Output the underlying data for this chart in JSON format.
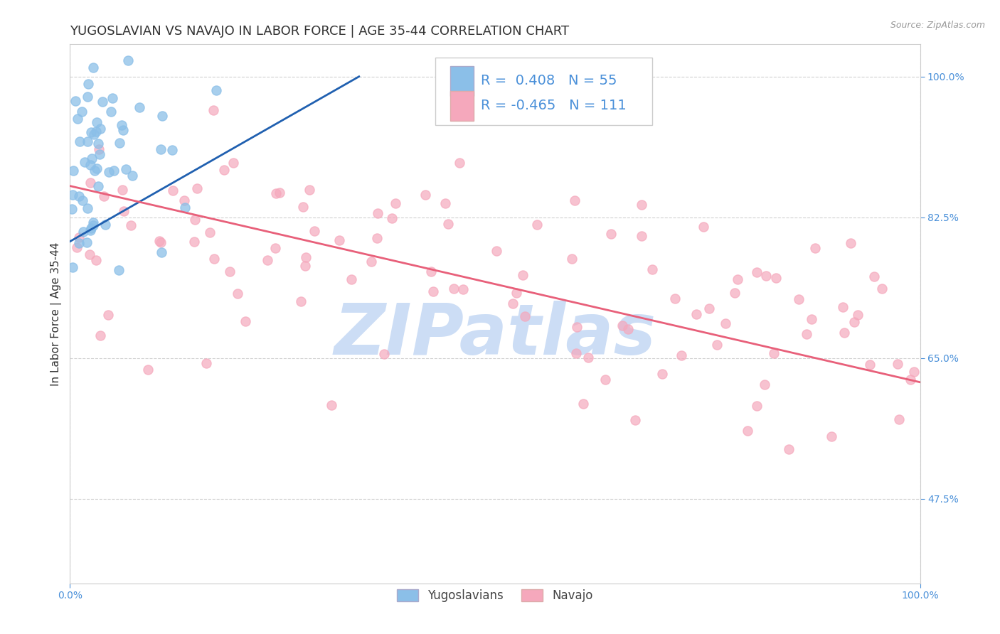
{
  "title": "YUGOSLAVIAN VS NAVAJO IN LABOR FORCE | AGE 35-44 CORRELATION CHART",
  "source_text": "Source: ZipAtlas.com",
  "ylabel": "In Labor Force | Age 35-44",
  "xlim": [
    0.0,
    1.0
  ],
  "ylim": [
    0.37,
    1.04
  ],
  "xtick_labels": [
    "0.0%",
    "100.0%"
  ],
  "xtick_positions": [
    0.0,
    1.0
  ],
  "ytick_labels": [
    "47.5%",
    "65.0%",
    "82.5%",
    "100.0%"
  ],
  "ytick_positions": [
    0.475,
    0.65,
    0.825,
    1.0
  ],
  "yug_color": "#8bbfe8",
  "navajo_color": "#f5a8bc",
  "yug_trend_color": "#2060b0",
  "navajo_trend_color": "#e8607a",
  "background_color": "#ffffff",
  "grid_color": "#cccccc",
  "watermark": "ZIPatlas",
  "watermark_color": "#ccddf5",
  "tick_color": "#4a90d9",
  "title_fontsize": 13,
  "axis_label_fontsize": 11,
  "tick_fontsize": 10,
  "legend_fontsize": 14
}
